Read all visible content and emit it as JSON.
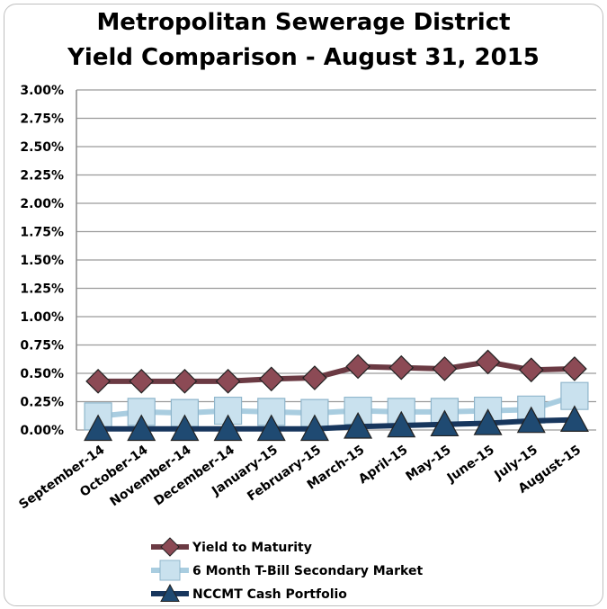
{
  "chart_data": {
    "type": "line",
    "title": "Metropolitan Sewerage District",
    "subtitle": "Yield Comparison - August 31, 2015",
    "categories": [
      "September-14",
      "October-14",
      "November-14",
      "December-14",
      "January-15",
      "February-15",
      "March-15",
      "April-15",
      "May-15",
      "June-15",
      "July-15",
      "August-15"
    ],
    "y_ticks": [
      "0.00%",
      "0.25%",
      "0.50%",
      "0.75%",
      "1.00%",
      "1.25%",
      "1.50%",
      "1.75%",
      "2.00%",
      "2.25%",
      "2.50%",
      "2.75%",
      "3.00%"
    ],
    "ylim": [
      0,
      3.0
    ],
    "grid": true,
    "legend_position": "bottom",
    "series": [
      {
        "name": "Yield to Maturity",
        "marker": "diamond",
        "color": "#6b3a43",
        "fill": "#8c4a55",
        "values": [
          0.43,
          0.43,
          0.43,
          0.43,
          0.45,
          0.46,
          0.56,
          0.55,
          0.54,
          0.6,
          0.53,
          0.54
        ]
      },
      {
        "name": "6 Month T-Bill Secondary Market",
        "marker": "square",
        "color": "#a9cde0",
        "fill": "#c9e1ee",
        "values": [
          0.12,
          0.16,
          0.15,
          0.17,
          0.16,
          0.15,
          0.17,
          0.16,
          0.16,
          0.17,
          0.18,
          0.3
        ]
      },
      {
        "name": "NCCMT Cash Portfolio",
        "marker": "triangle",
        "color": "#17365d",
        "fill": "#1f4a72",
        "values": [
          0.01,
          0.01,
          0.01,
          0.01,
          0.01,
          0.01,
          0.03,
          0.04,
          0.05,
          0.06,
          0.08,
          0.09
        ]
      }
    ]
  }
}
